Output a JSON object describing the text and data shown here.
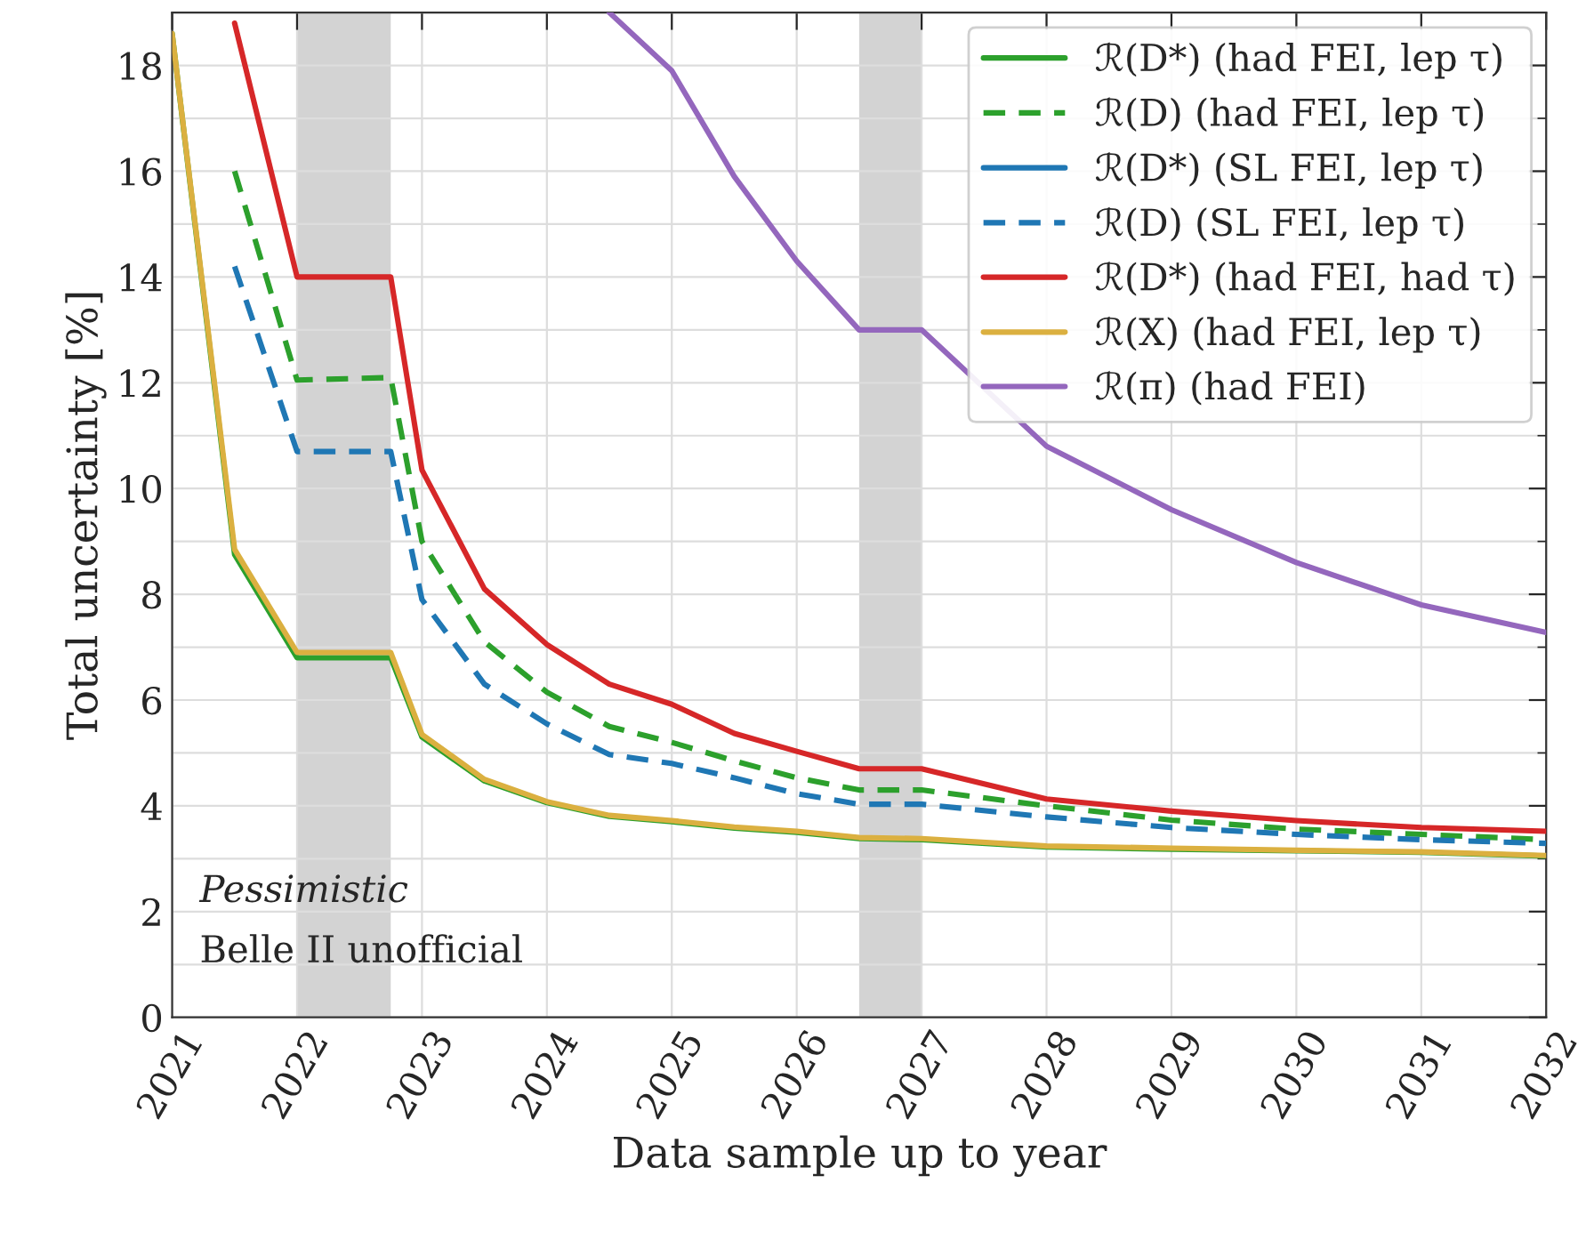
{
  "chart_data": {
    "type": "line",
    "xlabel": "Data sample up to year",
    "ylabel": "Total uncertainty [%]",
    "x": [
      2021,
      2021.5,
      2022,
      2022.75,
      2023,
      2023.5,
      2024,
      2024.5,
      2025,
      2025.5,
      2026,
      2026.5,
      2027,
      2028,
      2029,
      2030,
      2031,
      2032
    ],
    "series": [
      {
        "name": "ℛ(D*) (had FEI, lep τ)",
        "color": "#2ca02c",
        "line_style": "solid",
        "values": [
          18.6,
          8.75,
          6.8,
          6.8,
          5.3,
          4.47,
          4.06,
          3.8,
          3.7,
          3.58,
          3.5,
          3.38,
          3.36,
          3.22,
          3.18,
          3.15,
          3.12,
          3.05
        ]
      },
      {
        "name": "ℛ(D) (had FEI, lep τ)",
        "color": "#2ca02c",
        "line_style": "dashed",
        "values": [
          null,
          16.0,
          12.05,
          12.1,
          9.0,
          7.1,
          6.15,
          5.5,
          5.2,
          4.85,
          4.53,
          4.3,
          4.3,
          4.0,
          3.73,
          3.56,
          3.46,
          3.36
        ]
      },
      {
        "name": "ℛ(D*) (SL FEI, lep τ)",
        "color": "#1f77b4",
        "line_style": "solid",
        "values": [
          null,
          null,
          null,
          null,
          null,
          null,
          null,
          null,
          null,
          null,
          null,
          null,
          null,
          null,
          null,
          null,
          null,
          null
        ]
      },
      {
        "name": "ℛ(D) (SL FEI, lep τ)",
        "color": "#1f77b4",
        "line_style": "dashed",
        "values": [
          null,
          14.2,
          10.7,
          10.7,
          7.9,
          6.3,
          5.55,
          4.97,
          4.8,
          4.53,
          4.23,
          4.03,
          4.03,
          3.79,
          3.59,
          3.46,
          3.36,
          3.29
        ]
      },
      {
        "name": "ℛ(D*) (had FEI, had τ)",
        "color": "#d62728",
        "line_style": "solid",
        "values": [
          null,
          18.8,
          14.0,
          14.0,
          10.35,
          8.1,
          7.05,
          6.3,
          5.92,
          5.37,
          5.03,
          4.7,
          4.7,
          4.13,
          3.9,
          3.72,
          3.59,
          3.52
        ]
      },
      {
        "name": "ℛ(X) (had FEI, lep τ)",
        "color": "#dbb040",
        "line_style": "solid",
        "values": [
          18.6,
          8.85,
          6.9,
          6.9,
          5.35,
          4.5,
          4.08,
          3.82,
          3.72,
          3.6,
          3.52,
          3.4,
          3.38,
          3.24,
          3.2,
          3.16,
          3.13,
          3.06
        ]
      },
      {
        "name": "ℛ(π) (had FEI)",
        "color": "#9467bd",
        "line_style": "solid",
        "values": [
          null,
          null,
          null,
          null,
          null,
          null,
          null,
          19.0,
          17.9,
          15.9,
          14.3,
          13.0,
          13.0,
          10.8,
          9.6,
          8.6,
          7.8,
          7.28
        ]
      }
    ],
    "xlim": [
      2021,
      2032
    ],
    "xticks": [
      2021,
      2022,
      2023,
      2024,
      2025,
      2026,
      2027,
      2028,
      2029,
      2030,
      2031,
      2032
    ],
    "ylim": [
      0,
      19
    ],
    "yticks": [
      0,
      2,
      4,
      6,
      8,
      10,
      12,
      14,
      16,
      18
    ],
    "bands": [
      {
        "axis": "x",
        "from": 2022,
        "to": 2022.75,
        "color": "#d3d3d3"
      },
      {
        "axis": "x",
        "from": 2026.5,
        "to": 2027,
        "color": "#d3d3d3"
      }
    ],
    "annotations": [
      "Pessimistic",
      "Belle II unofficial"
    ],
    "grid": true,
    "legend": "top right"
  }
}
